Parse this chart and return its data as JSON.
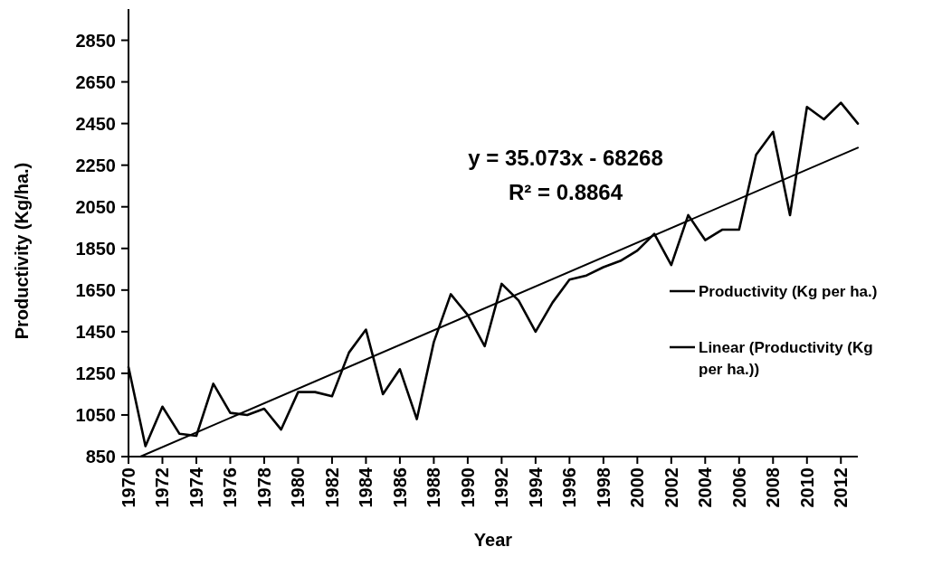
{
  "chart_data": {
    "type": "line",
    "xlabel": "Year",
    "ylabel": "Productivity (Kg/ha.)",
    "x": [
      1970,
      1971,
      1972,
      1973,
      1974,
      1975,
      1976,
      1977,
      1978,
      1979,
      1980,
      1981,
      1982,
      1983,
      1984,
      1985,
      1986,
      1987,
      1988,
      1989,
      1990,
      1991,
      1992,
      1993,
      1994,
      1995,
      1996,
      1997,
      1998,
      1999,
      2000,
      2001,
      2002,
      2003,
      2004,
      2005,
      2006,
      2007,
      2008,
      2009,
      2010,
      2011,
      2012,
      2013
    ],
    "xlim": [
      1970,
      2013
    ],
    "xticks": [
      1970,
      1972,
      1974,
      1976,
      1978,
      1980,
      1982,
      1984,
      1986,
      1988,
      1990,
      1992,
      1994,
      1996,
      1998,
      2000,
      2002,
      2004,
      2006,
      2008,
      2010,
      2012
    ],
    "ylim": [
      850,
      3000
    ],
    "yticks": [
      850,
      1050,
      1250,
      1450,
      1650,
      1850,
      2050,
      2250,
      2450,
      2650,
      2850
    ],
    "series": [
      {
        "name": "Productivity (Kg per ha.)",
        "color": "#000000",
        "values": [
          1280,
          900,
          1090,
          960,
          950,
          1200,
          1060,
          1050,
          1080,
          980,
          1160,
          1160,
          1140,
          1350,
          1460,
          1150,
          1270,
          1030,
          1400,
          1630,
          1530,
          1380,
          1680,
          1600,
          1450,
          1590,
          1700,
          1720,
          1760,
          1790,
          1840,
          1920,
          1770,
          2010,
          1890,
          1940,
          1940,
          2300,
          2410,
          2010,
          2530,
          2470,
          2550,
          2450
        ]
      },
      {
        "name": "Linear (Productivity (Kg per ha.))",
        "type": "line",
        "color": "#000000",
        "x": [
          1970.7,
          2013
        ],
        "values": [
          850,
          2334
        ]
      }
    ],
    "annotations": [
      "y = 35.073x - 68268",
      "R² = 0.8864"
    ],
    "legend": "right",
    "line_style": "solid"
  }
}
